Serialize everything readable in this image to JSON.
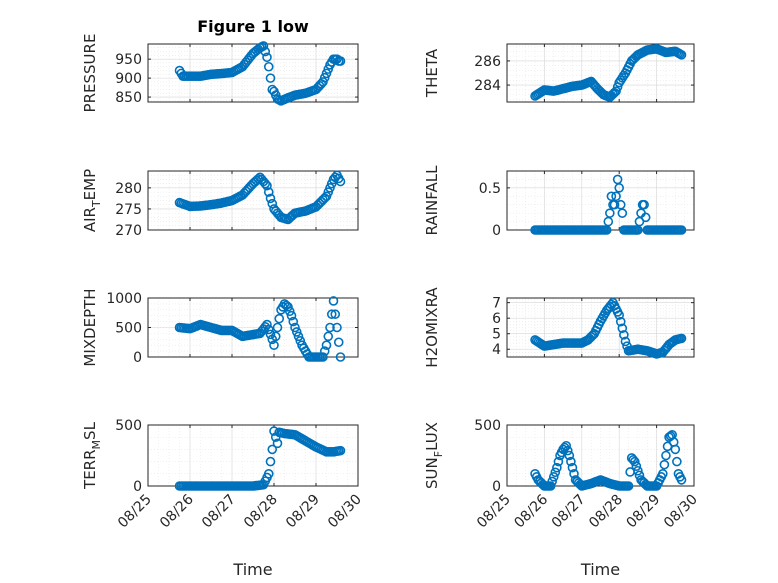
{
  "chart_data": [
    {
      "type": "scatter",
      "title": "Figure 1 low",
      "ylabel": "PRESSURE",
      "xlabel": "",
      "xlim": [
        "2019-08-25",
        "2019-08-30"
      ],
      "ylim": [
        837,
        990
      ],
      "yticks": [
        850,
        900,
        950
      ],
      "xtick_labels": [],
      "grid": true,
      "color": "#0072BD",
      "x": [
        "2019-08-25T18:00",
        "2019-08-25T20:00",
        "2019-08-26T00:00",
        "2019-08-26T06:00",
        "2019-08-26T12:00",
        "2019-08-26T18:00",
        "2019-08-27T00:00",
        "2019-08-27T06:00",
        "2019-08-27T12:00",
        "2019-08-27T16:00",
        "2019-08-27T18:00",
        "2019-08-27T20:00",
        "2019-08-27T21:00",
        "2019-08-27T22:00",
        "2019-08-27T23:00",
        "2019-08-28T00:00",
        "2019-08-28T02:00",
        "2019-08-28T04:00",
        "2019-08-28T08:00",
        "2019-08-28T12:00",
        "2019-08-28T18:00",
        "2019-08-29T00:00",
        "2019-08-29T04:00",
        "2019-08-29T08:00",
        "2019-08-29T10:00",
        "2019-08-29T12:00",
        "2019-08-29T13:00",
        "2019-08-29T14:00"
      ],
      "y": [
        920,
        905,
        905,
        905,
        910,
        912,
        915,
        930,
        965,
        980,
        985,
        955,
        930,
        900,
        870,
        865,
        845,
        840,
        848,
        855,
        860,
        870,
        890,
        935,
        950,
        950,
        945,
        945
      ]
    },
    {
      "type": "scatter",
      "title": "",
      "ylabel": "THETA",
      "xlabel": "",
      "xlim": [
        "2019-08-25",
        "2019-08-30"
      ],
      "ylim": [
        282.6,
        287.4
      ],
      "yticks": [
        284,
        286
      ],
      "xtick_labels": [],
      "grid": true,
      "color": "#0072BD",
      "x": [
        "2019-08-25T18:00",
        "2019-08-26T00:00",
        "2019-08-26T06:00",
        "2019-08-26T12:00",
        "2019-08-26T18:00",
        "2019-08-27T00:00",
        "2019-08-27T06:00",
        "2019-08-27T10:00",
        "2019-08-27T14:00",
        "2019-08-27T18:00",
        "2019-08-27T22:00",
        "2019-08-28T00:00",
        "2019-08-28T04:00",
        "2019-08-28T08:00",
        "2019-08-28T12:00",
        "2019-08-28T18:00",
        "2019-08-29T00:00",
        "2019-08-29T06:00",
        "2019-08-29T12:00",
        "2019-08-29T16:00"
      ],
      "y": [
        283.1,
        283.6,
        283.5,
        283.7,
        283.9,
        284.0,
        284.3,
        283.7,
        283.2,
        283.0,
        283.5,
        284.2,
        285.0,
        286.0,
        286.5,
        286.9,
        287.0,
        286.7,
        286.8,
        286.5
      ]
    },
    {
      "type": "scatter",
      "title": "",
      "ylabel": "AIR_TEMP",
      "xlabel": "",
      "xlim": [
        "2019-08-25",
        "2019-08-30"
      ],
      "ylim": [
        270,
        284
      ],
      "yticks": [
        270,
        275,
        280
      ],
      "xtick_labels": [],
      "grid": true,
      "color": "#0072BD",
      "x": [
        "2019-08-25T18:00",
        "2019-08-26T00:00",
        "2019-08-26T06:00",
        "2019-08-26T12:00",
        "2019-08-26T18:00",
        "2019-08-27T00:00",
        "2019-08-27T06:00",
        "2019-08-27T12:00",
        "2019-08-27T16:00",
        "2019-08-27T20:00",
        "2019-08-27T22:00",
        "2019-08-28T00:00",
        "2019-08-28T04:00",
        "2019-08-28T08:00",
        "2019-08-28T12:00",
        "2019-08-28T18:00",
        "2019-08-29T00:00",
        "2019-08-29T06:00",
        "2019-08-29T10:00",
        "2019-08-29T12:00",
        "2019-08-29T14:00"
      ],
      "y": [
        276.5,
        275.6,
        275.7,
        276.0,
        276.4,
        277.0,
        278.3,
        281.0,
        282.5,
        280.5,
        277.5,
        275.0,
        273.0,
        272.5,
        274.0,
        274.5,
        275.5,
        278.0,
        282.0,
        283.0,
        281.5
      ]
    },
    {
      "type": "scatter",
      "title": "",
      "ylabel": "RAINFALL",
      "xlabel": "",
      "xlim": [
        "2019-08-25",
        "2019-08-30"
      ],
      "ylim": [
        0,
        0.7
      ],
      "yticks": [
        0,
        0.5
      ],
      "xtick_labels": [],
      "grid": true,
      "color": "#0072BD",
      "x": [
        "2019-08-25T18:00",
        "2019-08-26T00:00",
        "2019-08-26T06:00",
        "2019-08-26T12:00",
        "2019-08-26T18:00",
        "2019-08-27T00:00",
        "2019-08-27T06:00",
        "2019-08-27T12:00",
        "2019-08-27T16:00",
        "2019-08-27T18:00",
        "2019-08-27T19:00",
        "2019-08-27T20:00",
        "2019-08-27T21:00",
        "2019-08-27T22:00",
        "2019-08-27T23:00",
        "2019-08-28T00:00",
        "2019-08-28T01:00",
        "2019-08-28T02:00",
        "2019-08-28T03:00",
        "2019-08-28T06:00",
        "2019-08-28T12:00",
        "2019-08-28T14:00",
        "2019-08-28T15:00",
        "2019-08-28T16:00",
        "2019-08-28T18:00",
        "2019-08-29T00:00",
        "2019-08-29T06:00",
        "2019-08-29T12:00",
        "2019-08-29T16:00"
      ],
      "y": [
        0,
        0,
        0,
        0,
        0,
        0,
        0,
        0,
        0,
        0.2,
        0.4,
        0.3,
        0.3,
        0.4,
        0.6,
        0.5,
        0.3,
        0.2,
        0,
        0,
        0,
        0.2,
        0.3,
        0.3,
        0,
        0,
        0,
        0,
        0
      ]
    },
    {
      "type": "scatter",
      "title": "",
      "ylabel": "MIXDEPTH",
      "xlabel": "",
      "xlim": [
        "2019-08-25",
        "2019-08-30"
      ],
      "ylim": [
        0,
        1000
      ],
      "yticks": [
        0,
        500,
        1000
      ],
      "xtick_labels": [],
      "grid": true,
      "color": "#0072BD",
      "x": [
        "2019-08-25T18:00",
        "2019-08-26T00:00",
        "2019-08-26T06:00",
        "2019-08-26T12:00",
        "2019-08-26T18:00",
        "2019-08-27T00:00",
        "2019-08-27T06:00",
        "2019-08-27T12:00",
        "2019-08-27T16:00",
        "2019-08-27T20:00",
        "2019-08-27T23:00",
        "2019-08-28T00:00",
        "2019-08-28T02:00",
        "2019-08-28T04:00",
        "2019-08-28T06:00",
        "2019-08-28T08:00",
        "2019-08-28T10:00",
        "2019-08-28T12:00",
        "2019-08-28T16:00",
        "2019-08-28T20:00",
        "2019-08-29T00:00",
        "2019-08-29T04:00",
        "2019-08-29T06:00",
        "2019-08-29T08:00",
        "2019-08-29T10:00",
        "2019-08-29T12:00",
        "2019-08-29T14:00"
      ],
      "y": [
        500,
        480,
        550,
        500,
        450,
        450,
        350,
        380,
        400,
        550,
        300,
        200,
        500,
        800,
        900,
        850,
        700,
        500,
        200,
        0,
        0,
        0,
        200,
        500,
        950,
        500,
        0
      ]
    },
    {
      "type": "scatter",
      "title": "",
      "ylabel": "H2OMIXRA",
      "xlabel": "",
      "xlim": [
        "2019-08-25",
        "2019-08-30"
      ],
      "ylim": [
        3.5,
        7.3
      ],
      "yticks": [
        4,
        5,
        6,
        7
      ],
      "xtick_labels": [],
      "grid": true,
      "color": "#0072BD",
      "x": [
        "2019-08-25T18:00",
        "2019-08-26T00:00",
        "2019-08-26T06:00",
        "2019-08-26T12:00",
        "2019-08-26T18:00",
        "2019-08-27T00:00",
        "2019-08-27T04:00",
        "2019-08-27T08:00",
        "2019-08-27T12:00",
        "2019-08-27T16:00",
        "2019-08-27T20:00",
        "2019-08-28T00:00",
        "2019-08-28T04:00",
        "2019-08-28T06:00",
        "2019-08-28T12:00",
        "2019-08-28T18:00",
        "2019-08-29T00:00",
        "2019-08-29T04:00",
        "2019-08-29T08:00",
        "2019-08-29T12:00",
        "2019-08-29T16:00"
      ],
      "y": [
        4.6,
        4.2,
        4.3,
        4.4,
        4.4,
        4.4,
        4.6,
        5.0,
        5.8,
        6.5,
        7.0,
        6.2,
        4.5,
        3.9,
        4.0,
        3.9,
        3.7,
        3.8,
        4.3,
        4.6,
        4.7
      ]
    },
    {
      "type": "scatter",
      "title": "",
      "ylabel": "TERR_MSL",
      "xlabel": "Time",
      "xlim": [
        "2019-08-25",
        "2019-08-30"
      ],
      "ylim": [
        0,
        500
      ],
      "yticks": [
        0,
        500
      ],
      "xtick_labels": [
        "08/25",
        "08/26",
        "08/27",
        "08/28",
        "08/29",
        "08/30"
      ],
      "grid": true,
      "color": "#0072BD",
      "x": [
        "2019-08-25T18:00",
        "2019-08-26T00:00",
        "2019-08-26T06:00",
        "2019-08-26T12:00",
        "2019-08-26T18:00",
        "2019-08-27T00:00",
        "2019-08-27T06:00",
        "2019-08-27T12:00",
        "2019-08-27T18:00",
        "2019-08-27T21:00",
        "2019-08-27T23:00",
        "2019-08-28T00:00",
        "2019-08-28T02:00",
        "2019-08-28T03:00",
        "2019-08-28T06:00",
        "2019-08-28T12:00",
        "2019-08-28T18:00",
        "2019-08-29T00:00",
        "2019-08-29T06:00",
        "2019-08-29T10:00",
        "2019-08-29T14:00"
      ],
      "y": [
        0,
        0,
        0,
        0,
        0,
        0,
        0,
        0,
        10,
        100,
        300,
        450,
        350,
        440,
        430,
        420,
        370,
        320,
        280,
        280,
        290
      ]
    },
    {
      "type": "scatter",
      "title": "",
      "ylabel": "SUN_FLUX",
      "xlabel": "Time",
      "xlim": [
        "2019-08-25",
        "2019-08-30"
      ],
      "ylim": [
        0,
        500
      ],
      "yticks": [
        0,
        500
      ],
      "xtick_labels": [
        "08/25",
        "08/26",
        "08/27",
        "08/28",
        "08/29",
        "08/30"
      ],
      "grid": true,
      "color": "#0072BD",
      "x": [
        "2019-08-25T18:00",
        "2019-08-25T20:00",
        "2019-08-26T00:00",
        "2019-08-26T04:00",
        "2019-08-26T08:00",
        "2019-08-26T10:00",
        "2019-08-26T12:00",
        "2019-08-26T14:00",
        "2019-08-26T16:00",
        "2019-08-26T20:00",
        "2019-08-27T00:00",
        "2019-08-27T06:00",
        "2019-08-27T12:00",
        "2019-08-27T18:00",
        "2019-08-28T00:00",
        "2019-08-28T06:00",
        "2019-08-28T08:00",
        "2019-08-28T10:00",
        "2019-08-28T14:00",
        "2019-08-28T18:00",
        "2019-08-29T00:00",
        "2019-08-29T04:00",
        "2019-08-29T06:00",
        "2019-08-29T08:00",
        "2019-08-29T10:00",
        "2019-08-29T12:00",
        "2019-08-29T14:00",
        "2019-08-29T16:00"
      ],
      "y": [
        100,
        50,
        0,
        0,
        150,
        250,
        300,
        330,
        250,
        50,
        0,
        20,
        50,
        20,
        0,
        0,
        230,
        200,
        50,
        0,
        0,
        100,
        250,
        400,
        420,
        300,
        100,
        50
      ]
    }
  ]
}
